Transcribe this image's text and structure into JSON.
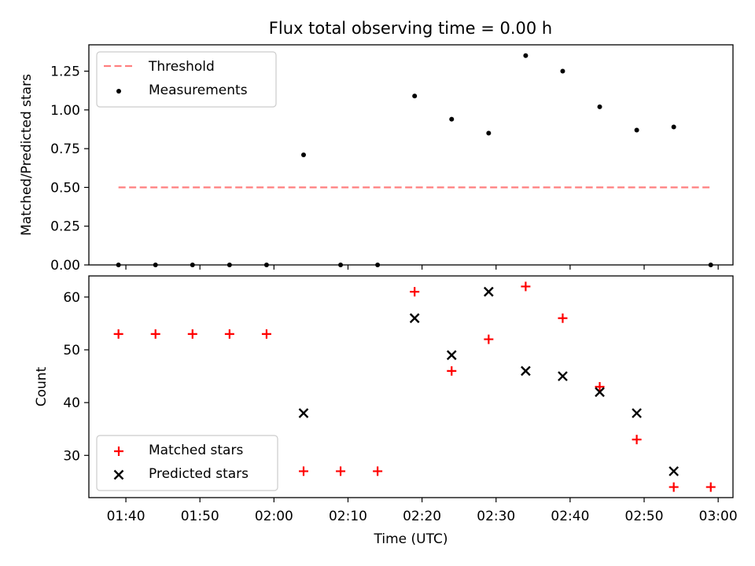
{
  "figure": {
    "title": "Flux total observing time = 0.00 h"
  },
  "chart_data": [
    {
      "type": "scatter",
      "ylabel": "Matched/Predicted stars",
      "ylim": [
        0,
        1.42
      ],
      "xlim": [
        "01:35",
        "03:02"
      ],
      "yticks": [
        0.0,
        0.25,
        0.5,
        0.75,
        1.0,
        1.25
      ],
      "ytick_labels": [
        "0.00",
        "0.25",
        "0.50",
        "0.75",
        "1.00",
        "1.25"
      ],
      "xticks": [
        "01:40",
        "01:50",
        "02:00",
        "02:10",
        "02:20",
        "02:30",
        "02:40",
        "02:50",
        "03:00"
      ],
      "show_xtick_labels": false,
      "grid": false,
      "legend_position": "upper-left",
      "threshold": {
        "name": "Threshold",
        "value": 0.5,
        "x_start": "01:39",
        "x_end": "02:59",
        "color": "#ff7f7f"
      },
      "series": [
        {
          "name": "Measurements",
          "marker": "dot",
          "color": "#000000",
          "x": [
            "01:39",
            "01:44",
            "01:49",
            "01:54",
            "01:59",
            "02:04",
            "02:09",
            "02:14",
            "02:19",
            "02:24",
            "02:29",
            "02:34",
            "02:39",
            "02:44",
            "02:49",
            "02:54",
            "02:59"
          ],
          "y": [
            0.0,
            0.0,
            0.0,
            0.0,
            0.0,
            0.71,
            0.0,
            0.0,
            1.09,
            0.94,
            0.85,
            1.35,
            1.25,
            1.02,
            0.87,
            0.89,
            0.0
          ]
        }
      ]
    },
    {
      "type": "scatter",
      "xlabel": "Time (UTC)",
      "ylabel": "Count",
      "ylim": [
        22,
        64
      ],
      "xlim": [
        "01:35",
        "03:02"
      ],
      "yticks": [
        30,
        40,
        50,
        60
      ],
      "ytick_labels": [
        "30",
        "40",
        "50",
        "60"
      ],
      "xticks": [
        "01:40",
        "01:50",
        "02:00",
        "02:10",
        "02:20",
        "02:30",
        "02:40",
        "02:50",
        "03:00"
      ],
      "xtick_labels": [
        "01:40",
        "01:50",
        "02:00",
        "02:10",
        "02:20",
        "02:30",
        "02:40",
        "02:50",
        "03:00"
      ],
      "show_xtick_labels": true,
      "grid": false,
      "legend_position": "lower-left",
      "series": [
        {
          "name": "Matched stars",
          "marker": "plus",
          "color": "#ff0000",
          "x": [
            "01:39",
            "01:44",
            "01:49",
            "01:54",
            "01:59",
            "02:04",
            "02:09",
            "02:14",
            "02:19",
            "02:24",
            "02:29",
            "02:34",
            "02:39",
            "02:44",
            "02:49",
            "02:54",
            "02:59"
          ],
          "y": [
            53,
            53,
            53,
            53,
            53,
            27,
            27,
            27,
            61,
            46,
            52,
            62,
            56,
            43,
            33,
            24,
            24
          ]
        },
        {
          "name": "Predicted stars",
          "marker": "x",
          "color": "#000000",
          "x": [
            "02:04",
            "02:19",
            "02:24",
            "02:29",
            "02:34",
            "02:39",
            "02:44",
            "02:49",
            "02:54"
          ],
          "y": [
            38,
            56,
            49,
            61,
            46,
            45,
            42,
            38,
            27
          ]
        }
      ]
    }
  ]
}
